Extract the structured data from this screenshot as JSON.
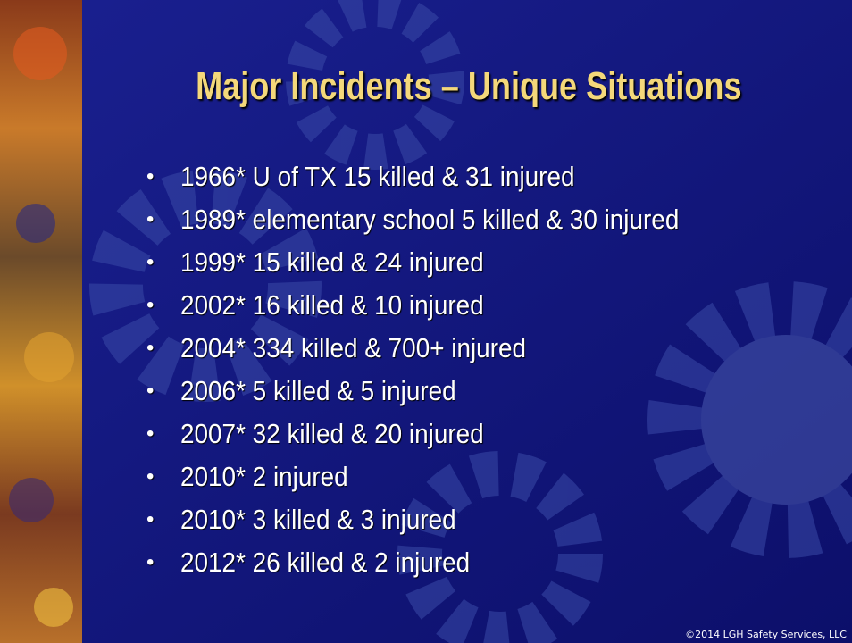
{
  "title": "Major Incidents – Unique Situations",
  "bullets": [
    "1966* U of TX 15 killed & 31 injured",
    "1989* elementary school 5 killed & 30 injured",
    "1999* 15 killed & 24 injured",
    "2002* 16 killed & 10 injured",
    "2004* 334 killed & 700+ injured",
    "2006* 5 killed & 5 injured",
    "2007* 32 killed & 20 injured",
    "2010* 2 injured",
    "2010* 3 killed & 3 injured",
    "2012* 26 killed & 2 injured"
  ],
  "footer": "©2014 LGH Safety Services, LLC"
}
